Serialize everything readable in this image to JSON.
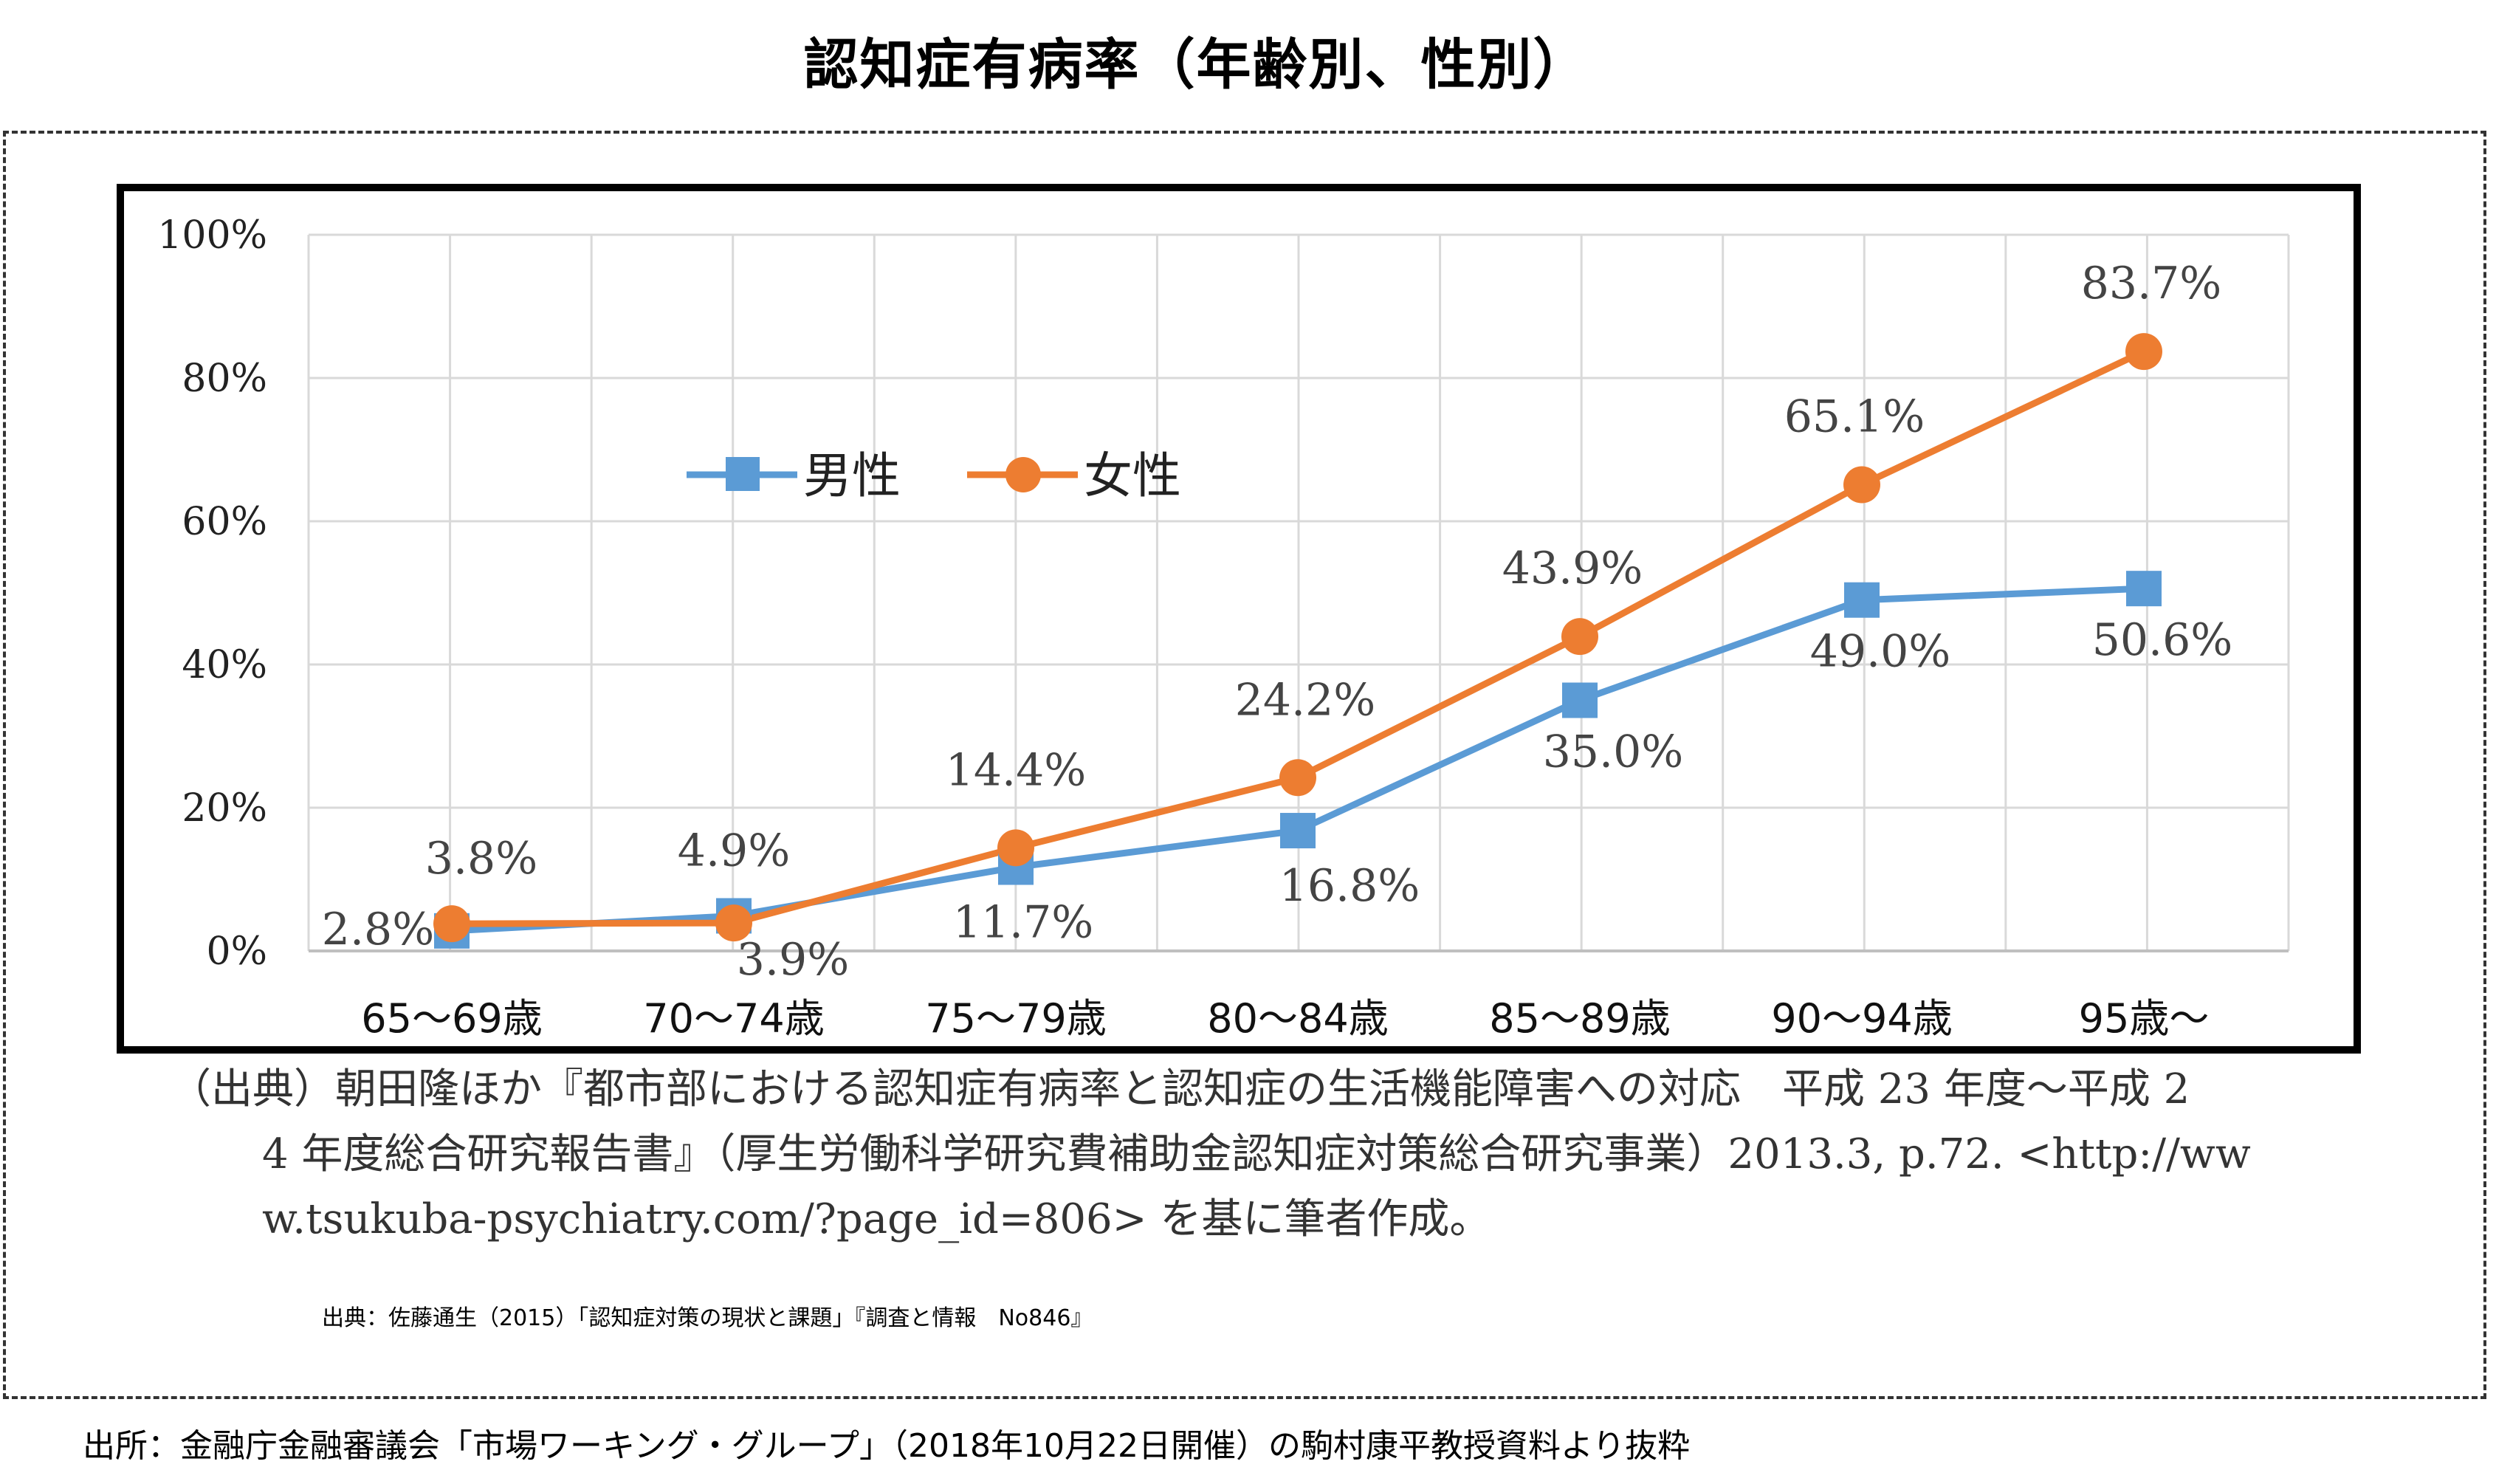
{
  "title": "認知症有病率（年齢別、性別）",
  "citation": {
    "line1": "（出典）朝田隆ほか『都市部における認知症有病率と認知症の生活機能障害への対応　平成 23 年度〜平成 2",
    "line2": "4 年度総合研究報告書』（厚生労働科学研究費補助金認知症対策総合研究事業）2013.3,  p.72.  <http://ww",
    "line3": "w.tsukuba-psychiatry.com/?page_id=806> を基に筆者作成。"
  },
  "source_note": "出典：佐藤通生（2015）「認知症対策の現状と課題」『調査と情報　No846』",
  "footer_source": "出所：金融庁金融審議会「市場ワーキング・グループ」（2018年10月22日開催）の駒村康平教授資料より抜粋",
  "chart_data": {
    "type": "line",
    "title": "",
    "xlabel": "",
    "ylabel": "",
    "categories": [
      "65〜69歳",
      "70〜74歳",
      "75〜79歳",
      "80〜84歳",
      "85〜89歳",
      "90〜94歳",
      "95歳〜"
    ],
    "ylim": [
      0,
      100
    ],
    "yticks": [
      "0%",
      "20%",
      "40%",
      "60%",
      "80%",
      "100%"
    ],
    "ytick_values": [
      0,
      20,
      40,
      60,
      80,
      100
    ],
    "grid": true,
    "legend_position": "top-left",
    "series": [
      {
        "name": "男性",
        "color": "#5B9BD5",
        "marker": "square",
        "values": [
          2.8,
          4.9,
          11.7,
          16.8,
          35.0,
          49.0,
          50.6
        ],
        "labels": [
          "2.8%",
          "4.9%",
          "11.7%",
          "16.8%",
          "35.0%",
          "49.0%",
          "50.6%"
        ]
      },
      {
        "name": "女性",
        "color": "#ED7D31",
        "marker": "circle",
        "values": [
          3.8,
          3.9,
          14.4,
          24.2,
          43.9,
          65.1,
          83.7
        ],
        "labels": [
          "3.8%",
          "3.9%",
          "14.4%",
          "24.2%",
          "43.9%",
          "65.1%",
          "83.7%"
        ]
      }
    ]
  }
}
